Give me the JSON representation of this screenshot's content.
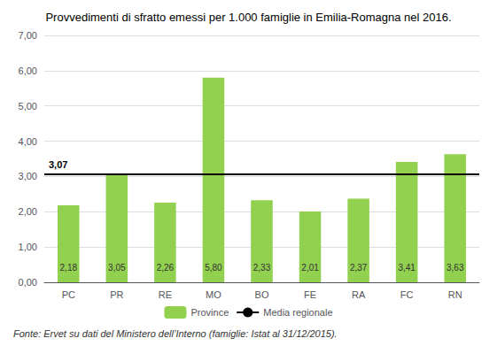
{
  "chart_data": {
    "type": "bar",
    "title": "Provvedimenti di sfratto emessi per 1.000 famiglie in Emilia-Romagna nel 2016.",
    "categories": [
      "PC",
      "PR",
      "RE",
      "MO",
      "BO",
      "FE",
      "RA",
      "FC",
      "RN"
    ],
    "series": [
      {
        "name": "Province",
        "color": "#92d050",
        "values": [
          2.18,
          3.05,
          2.26,
          5.8,
          2.33,
          2.01,
          2.37,
          3.41,
          3.63
        ],
        "value_labels": [
          "2,18",
          "3,05",
          "2,26",
          "5,80",
          "2,33",
          "2,01",
          "2,37",
          "3,41",
          "3,63"
        ]
      }
    ],
    "reference_lines": [
      {
        "name": "Media regionale",
        "value": 3.07,
        "label": "3,07",
        "color": "#000000"
      }
    ],
    "ylim": [
      0,
      7.0
    ],
    "yticks": [
      {
        "value": 0.0,
        "label": "0,00"
      },
      {
        "value": 1.0,
        "label": "1,00"
      },
      {
        "value": 2.0,
        "label": "2,00"
      },
      {
        "value": 3.0,
        "label": "3,00"
      },
      {
        "value": 4.0,
        "label": "4,00"
      },
      {
        "value": 5.0,
        "label": "5,00"
      },
      {
        "value": 6.0,
        "label": "6,00"
      },
      {
        "value": 7.0,
        "label": "7,00"
      }
    ],
    "grid": true,
    "legend": "bottom",
    "data_labels": true,
    "footer": "Fonte: Ervet su dati del Ministero dell’Interno (famiglie: Istat al 31/12/2015)."
  }
}
